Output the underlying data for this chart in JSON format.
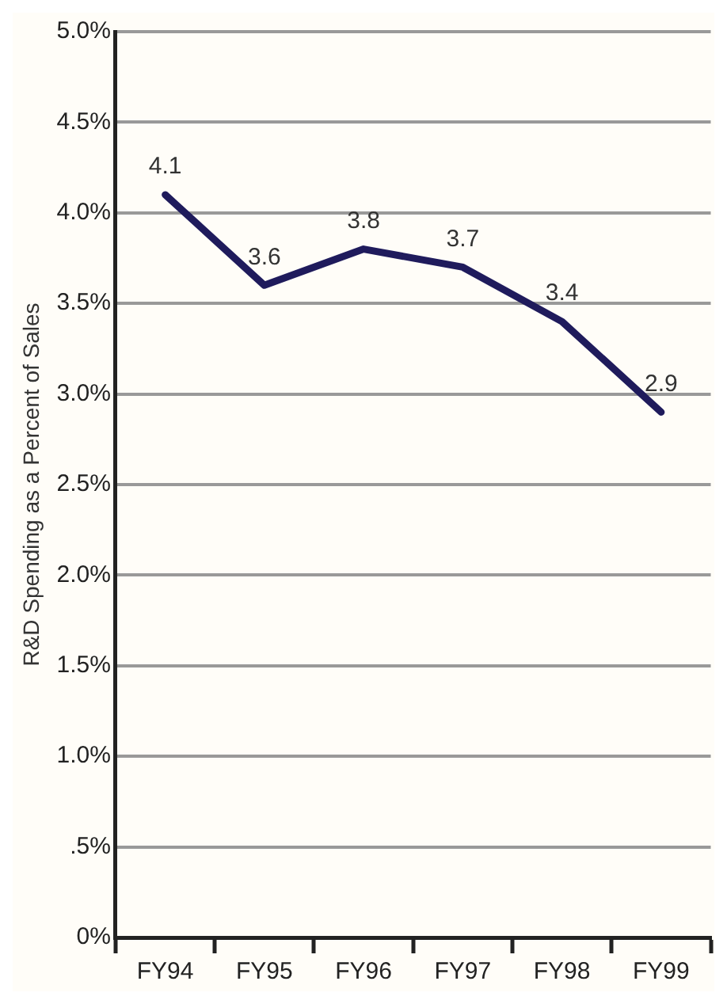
{
  "chart_data": {
    "type": "line",
    "ylabel": "R&D Spending as a Percent of Sales",
    "categories": [
      "FY94",
      "FY95",
      "FY96",
      "FY97",
      "FY98",
      "FY99"
    ],
    "series": [
      {
        "color": "#1f1b5c",
        "values": [
          4.1,
          3.6,
          3.8,
          3.7,
          3.4,
          2.9
        ]
      }
    ],
    "ylim": [
      0,
      5
    ],
    "yticks": [
      {
        "value": 0,
        "label": "0%"
      },
      {
        "value": 0.5,
        "label": ".5%"
      },
      {
        "value": 1,
        "label": "1.0%"
      },
      {
        "value": 1.5,
        "label": "1.5%"
      },
      {
        "value": 2,
        "label": "2.0%"
      },
      {
        "value": 2.5,
        "label": "2.5%"
      },
      {
        "value": 3,
        "label": "3.0%"
      },
      {
        "value": 3.5,
        "label": "3.5%"
      },
      {
        "value": 4,
        "label": "4.0%"
      },
      {
        "value": 4.5,
        "label": "4.5%"
      },
      {
        "value": 5,
        "label": "5.0%"
      }
    ],
    "grid": "y",
    "legend": false,
    "marker": "none",
    "line_style": "solid",
    "data_labels": true
  }
}
